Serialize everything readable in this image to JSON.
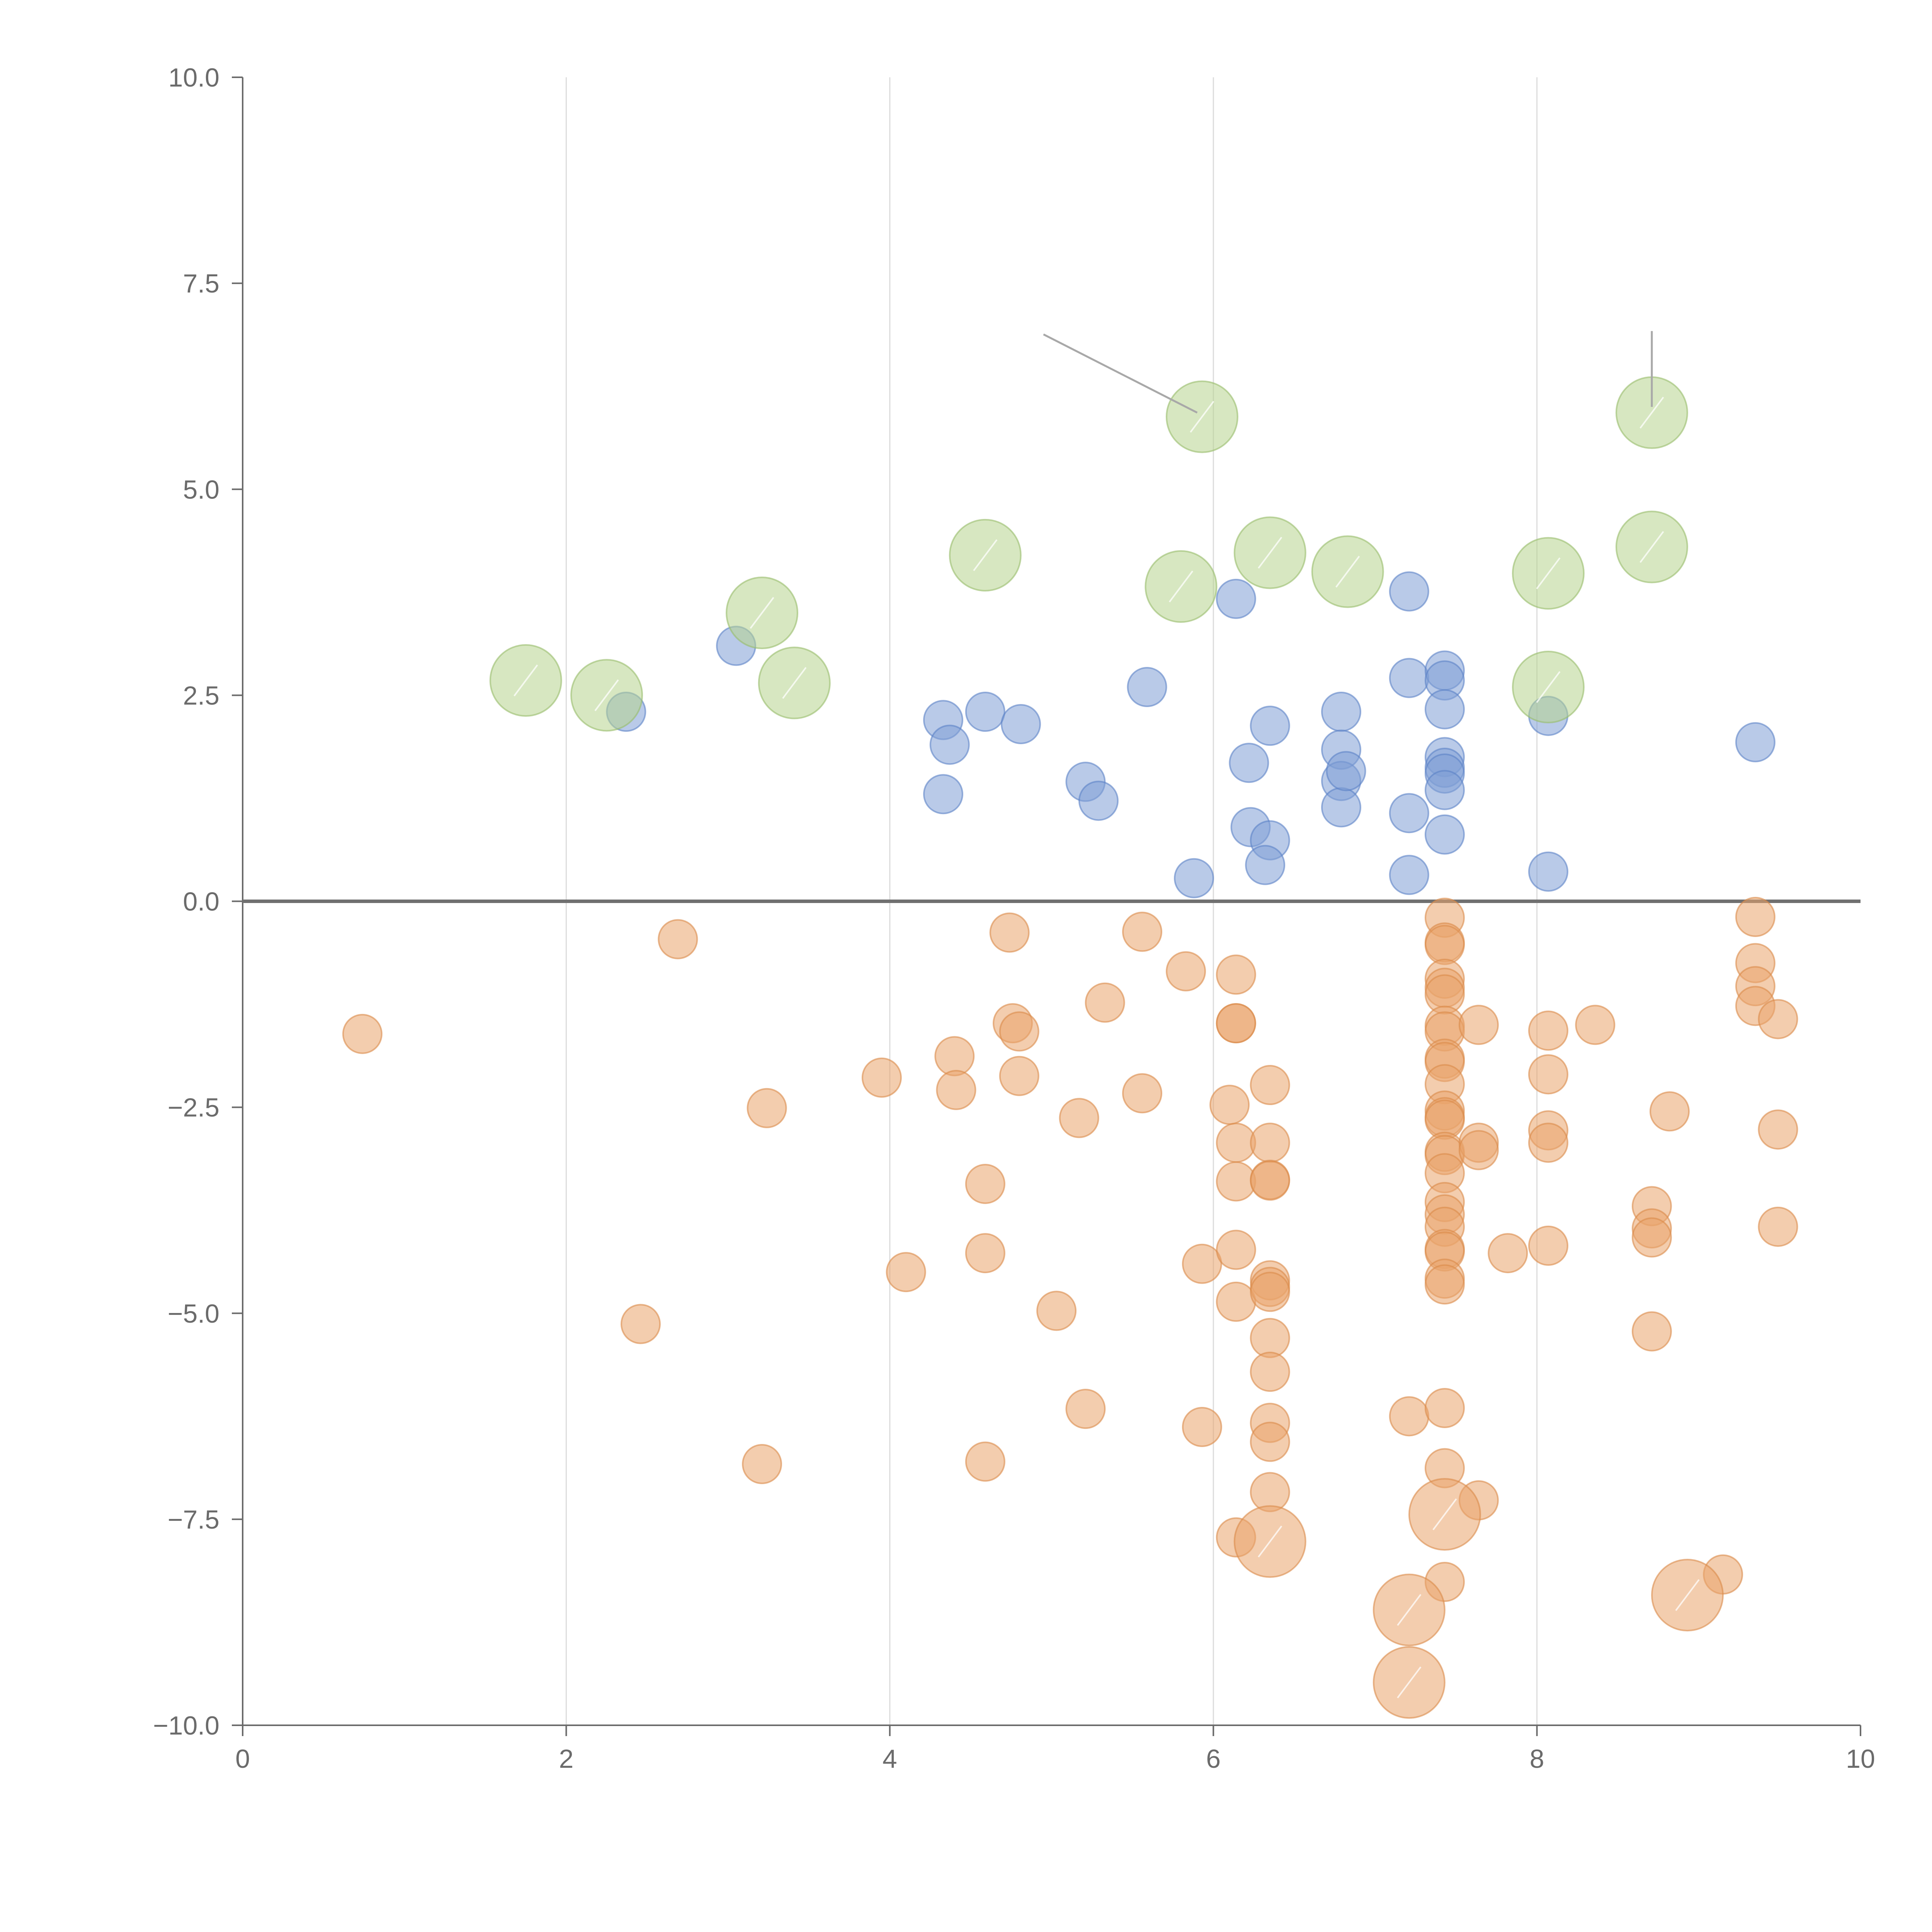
{
  "chart_data": {
    "type": "scatter",
    "title": "",
    "xlabel": "",
    "ylabel": "",
    "xlim": [
      0,
      10
    ],
    "ylim": [
      -10,
      10
    ],
    "x_ticks": [
      "0",
      "2",
      "4",
      "6",
      "8",
      "10"
    ],
    "y_ticks": [
      "10.0",
      "7.5",
      "5.0",
      "2.5",
      "0.0",
      "−2.5",
      "−5.0",
      "−7.5",
      "−10.0"
    ],
    "grid": "vertical",
    "reference_line": 0,
    "colors": {
      "blue": "#7f9fd6",
      "orange": "#e9a46b",
      "green": "#b6d38e",
      "blue_stroke": "#5b82c7",
      "orange_stroke": "#db8a4a",
      "green_stroke": "#97bd6a"
    },
    "series": [
      {
        "name": "blue",
        "size": "small",
        "points": [
          [
            3.05,
            3.1
          ],
          [
            2.37,
            2.3
          ],
          [
            4.33,
            2.2
          ],
          [
            4.37,
            1.9
          ],
          [
            4.33,
            1.3
          ],
          [
            4.59,
            2.3
          ],
          [
            4.81,
            2.15
          ],
          [
            5.21,
            1.45
          ],
          [
            5.29,
            1.22
          ],
          [
            5.59,
            2.6
          ],
          [
            5.88,
            0.28
          ],
          [
            6.14,
            3.67
          ],
          [
            6.22,
            1.68
          ],
          [
            6.23,
            0.9
          ],
          [
            6.35,
            2.13
          ],
          [
            6.35,
            0.74
          ],
          [
            6.32,
            0.44
          ],
          [
            6.79,
            2.3
          ],
          [
            6.79,
            1.84
          ],
          [
            6.79,
            1.46
          ],
          [
            6.79,
            1.14
          ],
          [
            6.82,
            1.58
          ],
          [
            7.21,
            3.76
          ],
          [
            7.21,
            2.71
          ],
          [
            7.21,
            1.07
          ],
          [
            7.21,
            0.32
          ],
          [
            7.43,
            2.8
          ],
          [
            7.43,
            2.68
          ],
          [
            7.43,
            2.33
          ],
          [
            7.43,
            1.75
          ],
          [
            7.43,
            1.62
          ],
          [
            7.43,
            1.55
          ],
          [
            7.43,
            1.35
          ],
          [
            7.43,
            0.81
          ],
          [
            8.07,
            2.25
          ],
          [
            8.07,
            0.36
          ],
          [
            9.35,
            1.93
          ]
        ]
      },
      {
        "name": "orange",
        "size": "small",
        "points": [
          [
            0.74,
            -1.61
          ],
          [
            2.46,
            -5.13
          ],
          [
            2.69,
            -0.46
          ],
          [
            3.21,
            -6.83
          ],
          [
            3.24,
            -2.51
          ],
          [
            3.95,
            -2.14
          ],
          [
            4.1,
            -4.5
          ],
          [
            4.4,
            -1.88
          ],
          [
            4.41,
            -2.29
          ],
          [
            4.59,
            -3.43
          ],
          [
            4.59,
            -4.27
          ],
          [
            4.59,
            -6.8
          ],
          [
            4.74,
            -0.38
          ],
          [
            4.76,
            -1.48
          ],
          [
            4.8,
            -1.58
          ],
          [
            4.8,
            -2.12
          ],
          [
            5.03,
            -4.97
          ],
          [
            5.17,
            -2.63
          ],
          [
            5.21,
            -6.16
          ],
          [
            5.33,
            -1.23
          ],
          [
            5.56,
            -0.37
          ],
          [
            5.56,
            -2.33
          ],
          [
            5.83,
            -0.85
          ],
          [
            5.93,
            -4.4
          ],
          [
            5.93,
            -6.38
          ],
          [
            6.1,
            -2.47
          ],
          [
            6.14,
            -0.89
          ],
          [
            6.14,
            -1.48
          ],
          [
            6.14,
            -1.48
          ],
          [
            6.14,
            -2.93
          ],
          [
            6.14,
            -3.4
          ],
          [
            6.14,
            -4.23
          ],
          [
            6.14,
            -4.86
          ],
          [
            6.14,
            -7.72
          ],
          [
            6.35,
            -2.23
          ],
          [
            6.35,
            -2.93
          ],
          [
            6.35,
            -3.38
          ],
          [
            6.35,
            -3.39
          ],
          [
            6.35,
            -4.6
          ],
          [
            6.35,
            -4.68
          ],
          [
            6.35,
            -4.74
          ],
          [
            6.35,
            -5.3
          ],
          [
            6.35,
            -5.71
          ],
          [
            6.35,
            -6.33
          ],
          [
            6.35,
            -6.56
          ],
          [
            6.35,
            -7.17
          ],
          [
            7.21,
            -6.25
          ],
          [
            7.43,
            -0.2
          ],
          [
            7.43,
            -0.5
          ],
          [
            7.43,
            -0.53
          ],
          [
            7.43,
            -0.94
          ],
          [
            7.43,
            -1.05
          ],
          [
            7.43,
            -1.13
          ],
          [
            7.43,
            -1.51
          ],
          [
            7.43,
            -1.58
          ],
          [
            7.43,
            -1.91
          ],
          [
            7.43,
            -1.95
          ],
          [
            7.43,
            -2.22
          ],
          [
            7.43,
            -2.54
          ],
          [
            7.43,
            -2.62
          ],
          [
            7.43,
            -2.65
          ],
          [
            7.43,
            -3.04
          ],
          [
            7.43,
            -3.08
          ],
          [
            7.43,
            -3.3
          ],
          [
            7.43,
            -3.65
          ],
          [
            7.43,
            -3.8
          ],
          [
            7.43,
            -3.95
          ],
          [
            7.43,
            -4.22
          ],
          [
            7.43,
            -4.25
          ],
          [
            7.43,
            -4.58
          ],
          [
            7.43,
            -4.65
          ],
          [
            7.43,
            -6.15
          ],
          [
            7.43,
            -6.88
          ],
          [
            7.43,
            -8.26
          ],
          [
            7.64,
            -1.5
          ],
          [
            7.64,
            -2.93
          ],
          [
            7.64,
            -3.02
          ],
          [
            7.64,
            -7.27
          ],
          [
            7.82,
            -4.27
          ],
          [
            8.07,
            -1.57
          ],
          [
            8.07,
            -2.1
          ],
          [
            8.07,
            -2.78
          ],
          [
            8.07,
            -2.93
          ],
          [
            8.07,
            -4.18
          ],
          [
            8.36,
            -1.5
          ],
          [
            8.71,
            -3.7
          ],
          [
            8.71,
            -3.97
          ],
          [
            8.71,
            -4.08
          ],
          [
            8.71,
            -5.22
          ],
          [
            8.82,
            -2.55
          ],
          [
            9.15,
            -8.17
          ],
          [
            9.35,
            -0.19
          ],
          [
            9.35,
            -0.75
          ],
          [
            9.35,
            -1.03
          ],
          [
            9.35,
            -1.27
          ],
          [
            9.49,
            -1.43
          ],
          [
            9.49,
            -2.77
          ],
          [
            9.49,
            -3.95
          ]
        ]
      },
      {
        "name": "orange-large",
        "size": "large",
        "points": [
          [
            6.35,
            -7.77
          ],
          [
            7.43,
            -7.44
          ],
          [
            7.21,
            -8.6
          ],
          [
            7.21,
            -9.48
          ],
          [
            8.93,
            -8.42
          ]
        ]
      },
      {
        "name": "green",
        "size": "large",
        "points": [
          [
            1.75,
            2.68
          ],
          [
            2.25,
            2.5
          ],
          [
            3.21,
            3.5
          ],
          [
            3.41,
            2.65
          ],
          [
            4.59,
            4.2
          ],
          [
            5.8,
            3.82
          ],
          [
            5.93,
            5.88
          ],
          [
            6.35,
            4.23
          ],
          [
            6.83,
            4.0
          ],
          [
            8.07,
            3.98
          ],
          [
            8.07,
            2.6
          ],
          [
            8.71,
            5.93
          ],
          [
            8.71,
            4.3
          ]
        ]
      }
    ]
  }
}
